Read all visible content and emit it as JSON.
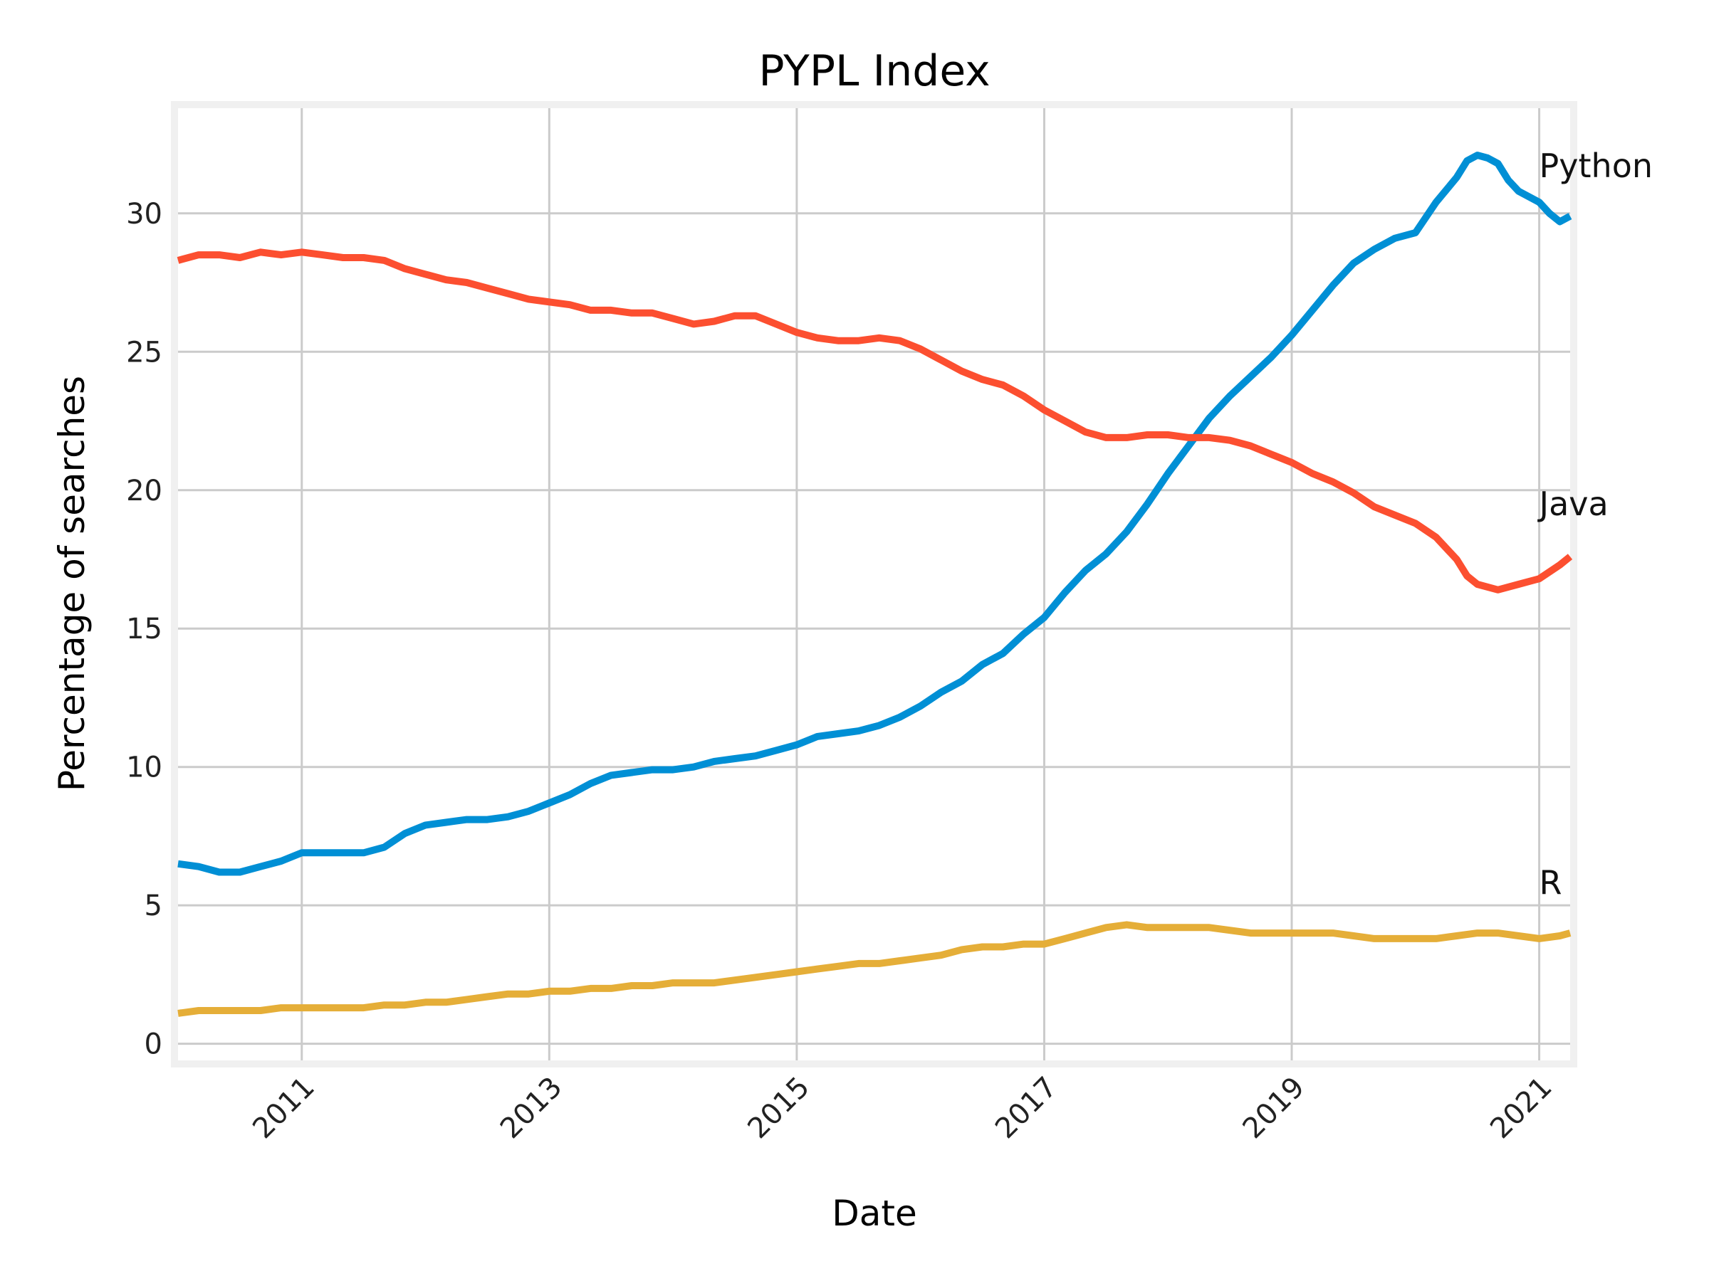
{
  "chart_data": {
    "type": "line",
    "title": "PYPL Index",
    "xlabel": "Date",
    "ylabel": "Percentage of searches",
    "x_range": [
      "2010-01",
      "2021-04"
    ],
    "ylim": [
      -0.6,
      33.8
    ],
    "grid": true,
    "legend": "none",
    "x_ticks": [
      {
        "date": "2011-01",
        "label": "2011"
      },
      {
        "date": "2013-01",
        "label": "2013"
      },
      {
        "date": "2015-01",
        "label": "2015"
      },
      {
        "date": "2017-01",
        "label": "2017"
      },
      {
        "date": "2019-01",
        "label": "2019"
      },
      {
        "date": "2021-01",
        "label": "2021"
      }
    ],
    "y_ticks": [
      {
        "value": 0,
        "label": "0"
      },
      {
        "value": 5,
        "label": "5"
      },
      {
        "value": 10,
        "label": "10"
      },
      {
        "value": 15,
        "label": "15"
      },
      {
        "value": 20,
        "label": "20"
      },
      {
        "value": 25,
        "label": "25"
      },
      {
        "value": 30,
        "label": "30"
      }
    ],
    "series": [
      {
        "name": "Python",
        "label": "Python",
        "color": "#008fd5",
        "label_anchor": {
          "date": "2021-01",
          "value": 31.3
        },
        "points": [
          [
            "2010-01",
            6.5
          ],
          [
            "2010-03",
            6.4
          ],
          [
            "2010-05",
            6.2
          ],
          [
            "2010-07",
            6.2
          ],
          [
            "2010-09",
            6.4
          ],
          [
            "2010-11",
            6.6
          ],
          [
            "2011-01",
            6.9
          ],
          [
            "2011-03",
            6.9
          ],
          [
            "2011-05",
            6.9
          ],
          [
            "2011-07",
            6.9
          ],
          [
            "2011-09",
            7.1
          ],
          [
            "2011-11",
            7.6
          ],
          [
            "2012-01",
            7.9
          ],
          [
            "2012-03",
            8.0
          ],
          [
            "2012-05",
            8.1
          ],
          [
            "2012-07",
            8.1
          ],
          [
            "2012-09",
            8.2
          ],
          [
            "2012-11",
            8.4
          ],
          [
            "2013-01",
            8.7
          ],
          [
            "2013-03",
            9.0
          ],
          [
            "2013-05",
            9.4
          ],
          [
            "2013-07",
            9.7
          ],
          [
            "2013-09",
            9.8
          ],
          [
            "2013-11",
            9.9
          ],
          [
            "2014-01",
            9.9
          ],
          [
            "2014-03",
            10.0
          ],
          [
            "2014-05",
            10.2
          ],
          [
            "2014-07",
            10.3
          ],
          [
            "2014-09",
            10.4
          ],
          [
            "2014-11",
            10.6
          ],
          [
            "2015-01",
            10.8
          ],
          [
            "2015-03",
            11.1
          ],
          [
            "2015-05",
            11.2
          ],
          [
            "2015-07",
            11.3
          ],
          [
            "2015-09",
            11.5
          ],
          [
            "2015-11",
            11.8
          ],
          [
            "2016-01",
            12.2
          ],
          [
            "2016-03",
            12.7
          ],
          [
            "2016-05",
            13.1
          ],
          [
            "2016-07",
            13.7
          ],
          [
            "2016-09",
            14.1
          ],
          [
            "2016-11",
            14.8
          ],
          [
            "2017-01",
            15.4
          ],
          [
            "2017-03",
            16.3
          ],
          [
            "2017-05",
            17.1
          ],
          [
            "2017-07",
            17.7
          ],
          [
            "2017-09",
            18.5
          ],
          [
            "2017-11",
            19.5
          ],
          [
            "2018-01",
            20.6
          ],
          [
            "2018-03",
            21.6
          ],
          [
            "2018-05",
            22.6
          ],
          [
            "2018-07",
            23.4
          ],
          [
            "2018-09",
            24.1
          ],
          [
            "2018-11",
            24.8
          ],
          [
            "2019-01",
            25.6
          ],
          [
            "2019-03",
            26.5
          ],
          [
            "2019-05",
            27.4
          ],
          [
            "2019-07",
            28.2
          ],
          [
            "2019-09",
            28.7
          ],
          [
            "2019-11",
            29.1
          ],
          [
            "2020-01",
            29.3
          ],
          [
            "2020-03",
            30.4
          ],
          [
            "2020-05",
            31.3
          ],
          [
            "2020-06",
            31.9
          ],
          [
            "2020-07",
            32.1
          ],
          [
            "2020-08",
            32.0
          ],
          [
            "2020-09",
            31.8
          ],
          [
            "2020-10",
            31.2
          ],
          [
            "2020-11",
            30.8
          ],
          [
            "2021-01",
            30.4
          ],
          [
            "2021-02",
            30.0
          ],
          [
            "2021-03",
            29.7
          ],
          [
            "2021-04",
            29.9
          ]
        ]
      },
      {
        "name": "Java",
        "label": "Java",
        "color": "#fc4f30",
        "label_anchor": {
          "date": "2021-01",
          "value": 19.1
        },
        "points": [
          [
            "2010-01",
            28.3
          ],
          [
            "2010-03",
            28.5
          ],
          [
            "2010-05",
            28.5
          ],
          [
            "2010-07",
            28.4
          ],
          [
            "2010-09",
            28.6
          ],
          [
            "2010-11",
            28.5
          ],
          [
            "2011-01",
            28.6
          ],
          [
            "2011-03",
            28.5
          ],
          [
            "2011-05",
            28.4
          ],
          [
            "2011-07",
            28.4
          ],
          [
            "2011-09",
            28.3
          ],
          [
            "2011-11",
            28.0
          ],
          [
            "2012-01",
            27.8
          ],
          [
            "2012-03",
            27.6
          ],
          [
            "2012-05",
            27.5
          ],
          [
            "2012-07",
            27.3
          ],
          [
            "2012-09",
            27.1
          ],
          [
            "2012-11",
            26.9
          ],
          [
            "2013-01",
            26.8
          ],
          [
            "2013-03",
            26.7
          ],
          [
            "2013-05",
            26.5
          ],
          [
            "2013-07",
            26.5
          ],
          [
            "2013-09",
            26.4
          ],
          [
            "2013-11",
            26.4
          ],
          [
            "2014-01",
            26.2
          ],
          [
            "2014-03",
            26.0
          ],
          [
            "2014-05",
            26.1
          ],
          [
            "2014-07",
            26.3
          ],
          [
            "2014-09",
            26.3
          ],
          [
            "2014-11",
            26.0
          ],
          [
            "2015-01",
            25.7
          ],
          [
            "2015-03",
            25.5
          ],
          [
            "2015-05",
            25.4
          ],
          [
            "2015-07",
            25.4
          ],
          [
            "2015-09",
            25.5
          ],
          [
            "2015-11",
            25.4
          ],
          [
            "2016-01",
            25.1
          ],
          [
            "2016-03",
            24.7
          ],
          [
            "2016-05",
            24.3
          ],
          [
            "2016-07",
            24.0
          ],
          [
            "2016-09",
            23.8
          ],
          [
            "2016-11",
            23.4
          ],
          [
            "2017-01",
            22.9
          ],
          [
            "2017-03",
            22.5
          ],
          [
            "2017-05",
            22.1
          ],
          [
            "2017-07",
            21.9
          ],
          [
            "2017-09",
            21.9
          ],
          [
            "2017-11",
            22.0
          ],
          [
            "2018-01",
            22.0
          ],
          [
            "2018-03",
            21.9
          ],
          [
            "2018-05",
            21.9
          ],
          [
            "2018-07",
            21.8
          ],
          [
            "2018-09",
            21.6
          ],
          [
            "2018-11",
            21.3
          ],
          [
            "2019-01",
            21.0
          ],
          [
            "2019-03",
            20.6
          ],
          [
            "2019-05",
            20.3
          ],
          [
            "2019-07",
            19.9
          ],
          [
            "2019-09",
            19.4
          ],
          [
            "2019-11",
            19.1
          ],
          [
            "2020-01",
            18.8
          ],
          [
            "2020-03",
            18.3
          ],
          [
            "2020-05",
            17.5
          ],
          [
            "2020-06",
            16.9
          ],
          [
            "2020-07",
            16.6
          ],
          [
            "2020-09",
            16.4
          ],
          [
            "2020-11",
            16.6
          ],
          [
            "2021-01",
            16.8
          ],
          [
            "2021-03",
            17.3
          ],
          [
            "2021-04",
            17.6
          ]
        ]
      },
      {
        "name": "R",
        "label": "R",
        "color": "#e5ae38",
        "label_anchor": {
          "date": "2021-01",
          "value": 5.4
        },
        "points": [
          [
            "2010-01",
            1.1
          ],
          [
            "2010-03",
            1.2
          ],
          [
            "2010-05",
            1.2
          ],
          [
            "2010-07",
            1.2
          ],
          [
            "2010-09",
            1.2
          ],
          [
            "2010-11",
            1.3
          ],
          [
            "2011-01",
            1.3
          ],
          [
            "2011-03",
            1.3
          ],
          [
            "2011-05",
            1.3
          ],
          [
            "2011-07",
            1.3
          ],
          [
            "2011-09",
            1.4
          ],
          [
            "2011-11",
            1.4
          ],
          [
            "2012-01",
            1.5
          ],
          [
            "2012-03",
            1.5
          ],
          [
            "2012-05",
            1.6
          ],
          [
            "2012-07",
            1.7
          ],
          [
            "2012-09",
            1.8
          ],
          [
            "2012-11",
            1.8
          ],
          [
            "2013-01",
            1.9
          ],
          [
            "2013-03",
            1.9
          ],
          [
            "2013-05",
            2.0
          ],
          [
            "2013-07",
            2.0
          ],
          [
            "2013-09",
            2.1
          ],
          [
            "2013-11",
            2.1
          ],
          [
            "2014-01",
            2.2
          ],
          [
            "2014-03",
            2.2
          ],
          [
            "2014-05",
            2.2
          ],
          [
            "2014-07",
            2.3
          ],
          [
            "2014-09",
            2.4
          ],
          [
            "2014-11",
            2.5
          ],
          [
            "2015-01",
            2.6
          ],
          [
            "2015-03",
            2.7
          ],
          [
            "2015-05",
            2.8
          ],
          [
            "2015-07",
            2.9
          ],
          [
            "2015-09",
            2.9
          ],
          [
            "2015-11",
            3.0
          ],
          [
            "2016-01",
            3.1
          ],
          [
            "2016-03",
            3.2
          ],
          [
            "2016-05",
            3.4
          ],
          [
            "2016-07",
            3.5
          ],
          [
            "2016-09",
            3.5
          ],
          [
            "2016-11",
            3.6
          ],
          [
            "2017-01",
            3.6
          ],
          [
            "2017-03",
            3.8
          ],
          [
            "2017-05",
            4.0
          ],
          [
            "2017-07",
            4.2
          ],
          [
            "2017-09",
            4.3
          ],
          [
            "2017-11",
            4.2
          ],
          [
            "2018-01",
            4.2
          ],
          [
            "2018-03",
            4.2
          ],
          [
            "2018-05",
            4.2
          ],
          [
            "2018-07",
            4.1
          ],
          [
            "2018-09",
            4.0
          ],
          [
            "2018-11",
            4.0
          ],
          [
            "2019-01",
            4.0
          ],
          [
            "2019-03",
            4.0
          ],
          [
            "2019-05",
            4.0
          ],
          [
            "2019-07",
            3.9
          ],
          [
            "2019-09",
            3.8
          ],
          [
            "2019-11",
            3.8
          ],
          [
            "2020-01",
            3.8
          ],
          [
            "2020-03",
            3.8
          ],
          [
            "2020-05",
            3.9
          ],
          [
            "2020-07",
            4.0
          ],
          [
            "2020-09",
            4.0
          ],
          [
            "2020-11",
            3.9
          ],
          [
            "2021-01",
            3.8
          ],
          [
            "2021-03",
            3.9
          ],
          [
            "2021-04",
            4.0
          ]
        ]
      }
    ]
  }
}
